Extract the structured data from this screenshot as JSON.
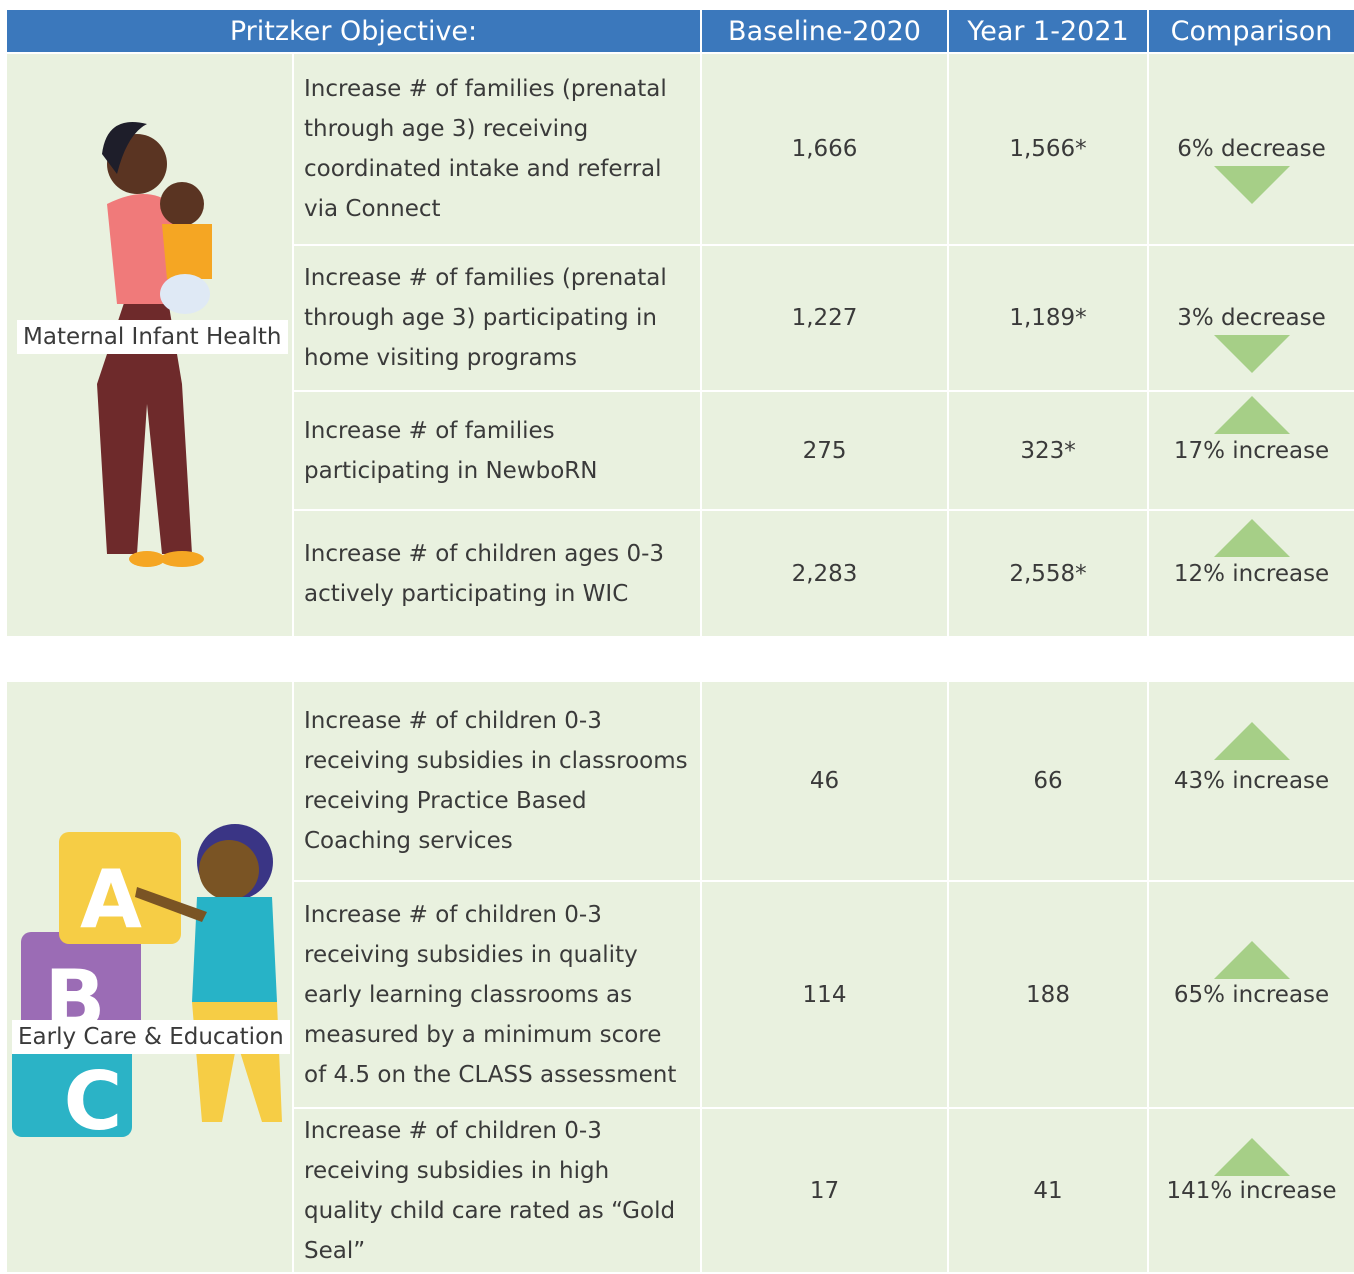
{
  "header": {
    "objective": "Pritzker Objective:",
    "baseline": "Baseline-2020",
    "year1": "Year 1-2021",
    "comparison": "Comparison"
  },
  "sections": [
    {
      "label": "Maternal Infant Health",
      "rows": [
        {
          "objective": "Increase # of families (prenatal through age 3) receiving coordinated intake and referral via Connect",
          "baseline": "1,666",
          "year1": "1,566*",
          "comparison": "6%  decrease"
        },
        {
          "objective": "Increase # of families (prenatal through age 3) participating in home visiting programs",
          "baseline": "1,227",
          "year1": "1,189*",
          "comparison": "3% decrease"
        },
        {
          "objective": "Increase # of families participating in NewboRN",
          "baseline": "275",
          "year1": "323*",
          "comparison": "17% increase"
        },
        {
          "objective": "Increase # of children ages 0-3 actively participating in WIC",
          "baseline": "2,283",
          "year1": "2,558*",
          "comparison": "12% increase"
        }
      ]
    },
    {
      "label": "Early Care & Education",
      "blocks": [
        "A",
        "B",
        "C"
      ],
      "rows": [
        {
          "objective": "Increase # of children 0-3 receiving subsidies in classrooms receiving Practice Based Coaching services",
          "baseline": "46",
          "year1": "66",
          "comparison": "43% increase"
        },
        {
          "objective": "Increase # of children 0-3 receiving subsidies in quality early learning classrooms as measured by a minimum score of 4.5 on the CLASS assessment",
          "baseline": "114",
          "year1": "188",
          "comparison": "65% increase"
        },
        {
          "objective": "Increase # of children 0-3 receiving subsidies in high quality child care rated as “Gold Seal”",
          "baseline": "17",
          "year1": "41",
          "comparison": "141% increase"
        }
      ]
    }
  ]
}
